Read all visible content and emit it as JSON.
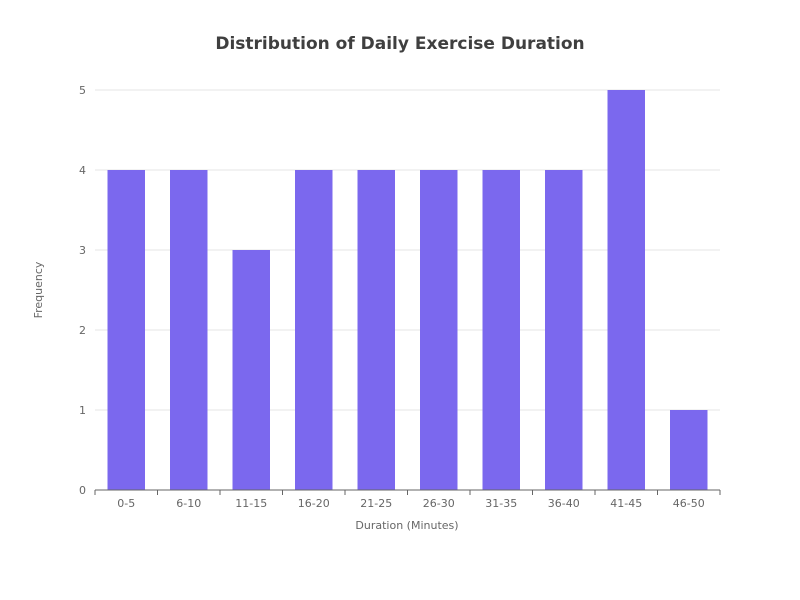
{
  "chart_data": {
    "type": "bar",
    "title": "Distribution of Daily Exercise Duration",
    "xlabel": "Duration (Minutes)",
    "ylabel": "Frequency",
    "categories": [
      "0-5",
      "6-10",
      "11-15",
      "16-20",
      "21-25",
      "26-30",
      "31-35",
      "36-40",
      "41-45",
      "46-50"
    ],
    "values": [
      4,
      4,
      3,
      4,
      4,
      4,
      4,
      4,
      5,
      1
    ],
    "ylim": [
      0,
      5
    ],
    "yticks": [
      "0",
      "1",
      "2",
      "3",
      "4",
      "5"
    ],
    "grid": true,
    "legend": "none",
    "bar_color": "#7b68ee",
    "grid_color": "#e6e6e6",
    "axis_color": "#666666"
  }
}
